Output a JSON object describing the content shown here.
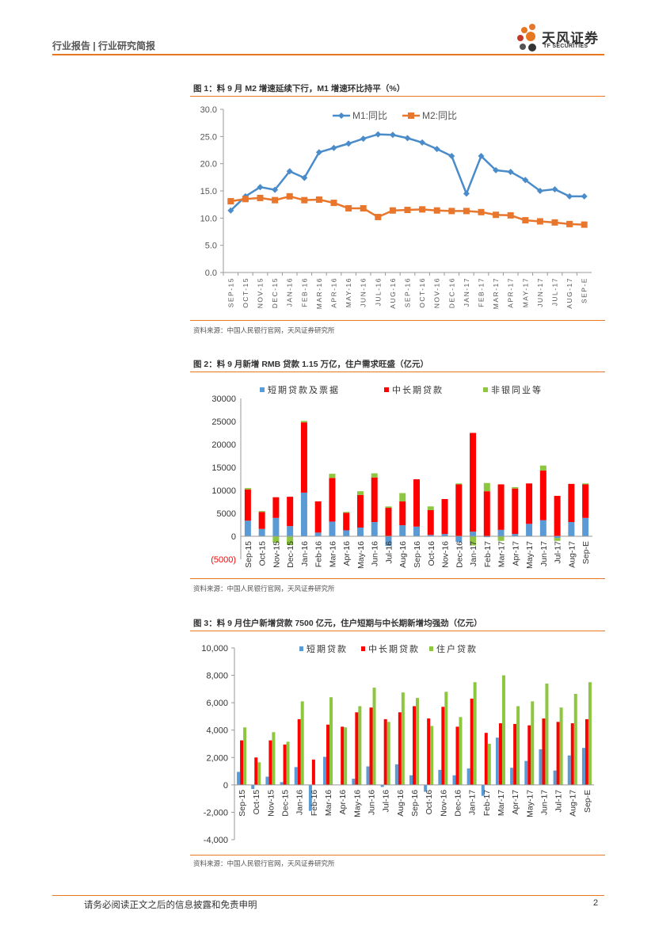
{
  "header": {
    "left_text": "行业报告 | 行业研究简报",
    "brand_name": "天风证券",
    "brand_sub": "TF SECURITIES"
  },
  "figures": [
    {
      "title": "图 1：料 9 月 M2 增速延续下行，M1 增速环比持平（%）",
      "source": "资料来源：中国人民银行官网，天风证券研究所"
    },
    {
      "title": "图 2：料 9 月新增 RMB 贷款 1.15 万亿，住户需求旺盛（亿元）",
      "source": "资料来源：中国人民银行官网，天风证券研究所"
    },
    {
      "title": "图 3：料 9 月住户新增贷款 7500 亿元，住户短期与中长期新增均强劲（亿元）",
      "source": "资料来源：中国人民银行官网，天风证券研究所"
    }
  ],
  "footer": {
    "disclaimer": "请务必阅读正文之后的信息披露和免责申明",
    "page": "2"
  },
  "colors": {
    "accent": "#e87722",
    "blue": "#4a8bc9",
    "orange": "#e8762c",
    "red": "#ff0000",
    "green": "#8dc63f",
    "bar_blue": "#5b9bd5"
  },
  "chart_data": [
    {
      "type": "line",
      "title": "图 1：料 9 月 M2 增速延续下行，M1 增速环比持平（%）",
      "categories": [
        "SEP-15",
        "OCT-15",
        "NOV-15",
        "DEC-15",
        "JAN-16",
        "FEB-16",
        "MAR-16",
        "APR-16",
        "MAY-16",
        "JUN-16",
        "JUL-16",
        "AUG-16",
        "SEP-16",
        "OCT-16",
        "NOV-16",
        "DEC-16",
        "JAN-17",
        "FEB-17",
        "MAR-17",
        "APR-17",
        "MAY-17",
        "JUN-17",
        "JUL-17",
        "AUG-17",
        "SEP-E"
      ],
      "series": [
        {
          "name": "M1:同比",
          "values": [
            11.4,
            14.0,
            15.7,
            15.2,
            18.6,
            17.4,
            22.1,
            22.9,
            23.7,
            24.6,
            25.4,
            25.3,
            24.7,
            23.9,
            22.7,
            21.4,
            14.5,
            21.4,
            18.8,
            18.5,
            17.0,
            15.0,
            15.3,
            14.0,
            14.0
          ]
        },
        {
          "name": "M2:同比",
          "values": [
            13.1,
            13.5,
            13.7,
            13.3,
            14.0,
            13.3,
            13.4,
            12.8,
            11.8,
            11.8,
            10.2,
            11.4,
            11.5,
            11.6,
            11.4,
            11.3,
            11.3,
            11.1,
            10.6,
            10.5,
            9.6,
            9.4,
            9.2,
            8.9,
            8.8
          ]
        }
      ],
      "yticks": [
        "0.0",
        "5.0",
        "10.0",
        "15.0",
        "20.0",
        "25.0",
        "30.0"
      ],
      "ylim": [
        0,
        30
      ],
      "legend": "top-center"
    },
    {
      "type": "bar",
      "stacked": true,
      "title": "图 2：料 9 月新增 RMB 贷款 1.15 万亿，住户需求旺盛（亿元）",
      "categories": [
        "Sep-15",
        "Oct-15",
        "Nov-15",
        "Dec-15",
        "Jan-16",
        "Feb-16",
        "Mar-16",
        "Apr-16",
        "May-16",
        "Jun-16",
        "Jul-16",
        "Aug-16",
        "Sep-16",
        "Oct-16",
        "Nov-16",
        "Dec-16",
        "Jan-17",
        "Feb-17",
        "Mar-17",
        "Apr-17",
        "May-17",
        "Jun-17",
        "Jul-17",
        "Aug-17",
        "Sep-E"
      ],
      "series": [
        {
          "name": "短期贷款及票据",
          "values": [
            3400,
            1600,
            4000,
            2200,
            9500,
            800,
            3200,
            1300,
            1900,
            3100,
            -2100,
            2400,
            2100,
            300,
            500,
            -1200,
            1000,
            -200,
            1400,
            500,
            2700,
            3500,
            -400,
            3100,
            4000
          ]
        },
        {
          "name": "中长期贷款",
          "values": [
            6800,
            3700,
            4500,
            6400,
            15300,
            6800,
            9500,
            3800,
            7100,
            9700,
            6200,
            5200,
            10300,
            5400,
            7600,
            11300,
            21500,
            9800,
            9900,
            9900,
            8800,
            10800,
            8800,
            8300,
            7300
          ]
        },
        {
          "name": "非银同业等",
          "values": [
            300,
            200,
            -1400,
            -1900,
            300,
            0,
            900,
            200,
            800,
            900,
            300,
            1800,
            0,
            800,
            0,
            200,
            -2000,
            1800,
            -1000,
            300,
            0,
            1100,
            -600,
            0,
            200
          ]
        }
      ],
      "yticks": [
        "(5000)",
        "0",
        "5000",
        "10000",
        "15000",
        "20000",
        "25000",
        "30000"
      ],
      "ylim": [
        -5000,
        30000
      ],
      "legend": "top"
    },
    {
      "type": "bar",
      "title": "图 3：料 9 月住户新增贷款 7500 亿元，住户短期与中长期新增均强劲（亿元）",
      "categories": [
        "Sep-15",
        "Oct-15",
        "Nov-15",
        "Dec-15",
        "Jan-16",
        "Feb-16",
        "Mar-16",
        "Apr-16",
        "May-16",
        "Jun-16",
        "Jul-16",
        "Aug-16",
        "Sep-16",
        "Oct-16",
        "Nov-16",
        "Dec-16",
        "Jan-17",
        "Feb-17",
        "Mar-17",
        "Apr-17",
        "May-17",
        "Jun-17",
        "Jul-17",
        "Aug-17",
        "Sep-E"
      ],
      "series": [
        {
          "name": "短期贷款",
          "values": [
            950,
            -300,
            600,
            200,
            1300,
            -1900,
            2050,
            0,
            450,
            1350,
            -150,
            1500,
            700,
            -500,
            1100,
            700,
            1200,
            -800,
            3450,
            1250,
            1750,
            2600,
            1050,
            2150,
            2700
          ]
        },
        {
          "name": "中长期贷款",
          "values": [
            3250,
            2000,
            3250,
            2950,
            4800,
            1850,
            4400,
            4250,
            5300,
            5650,
            4800,
            5300,
            5750,
            4850,
            5700,
            4250,
            6300,
            3800,
            4500,
            4450,
            4350,
            4850,
            4600,
            4500,
            4800
          ]
        },
        {
          "name": "住户贷款",
          "values": [
            4200,
            1650,
            3850,
            3150,
            6100,
            0,
            6400,
            4200,
            5750,
            7100,
            4600,
            6750,
            6350,
            4300,
            6800,
            4950,
            7500,
            3000,
            8000,
            5750,
            6100,
            7400,
            5650,
            6650,
            7500
          ]
        }
      ],
      "yticks": [
        "-4,000",
        "-2,000",
        "0",
        "2,000",
        "4,000",
        "6,000",
        "8,000",
        "10,000"
      ],
      "ylim": [
        -4000,
        10000
      ],
      "legend": "top"
    }
  ]
}
